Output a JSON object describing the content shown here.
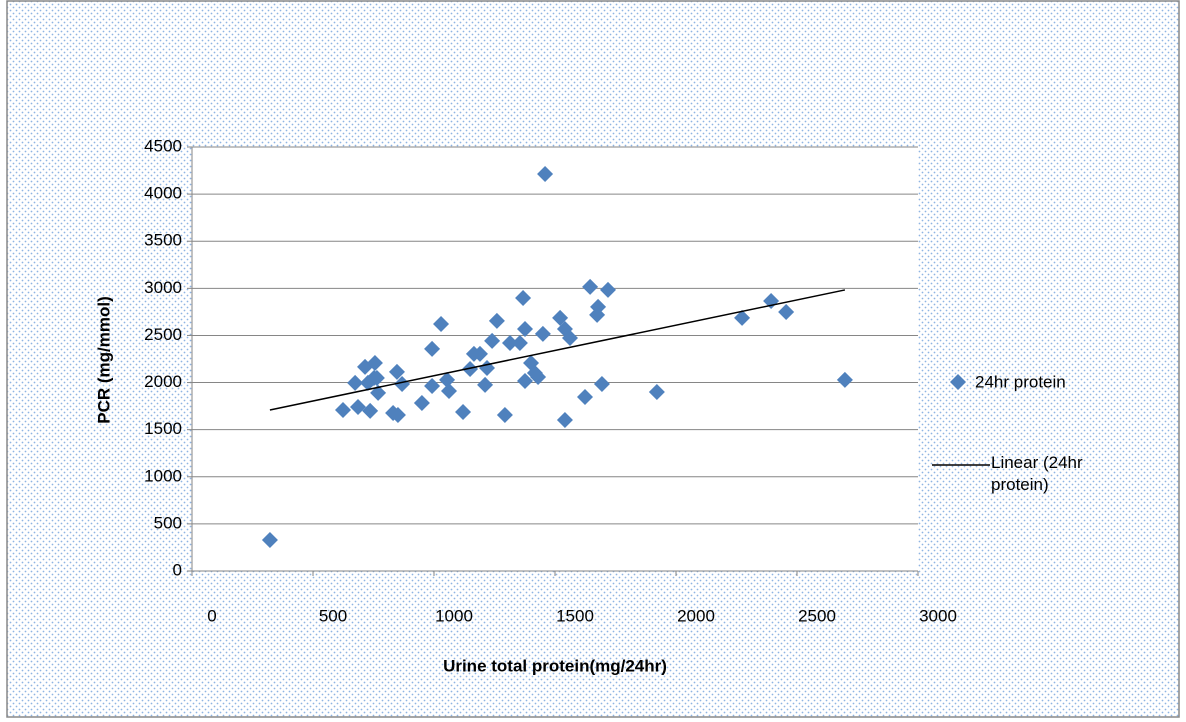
{
  "chart_data": {
    "type": "scatter",
    "x_label": "Urine total protein(mg/24hr)",
    "y_label": "PCR (mg/mmol)",
    "xlim": [
      0,
      3000
    ],
    "xticks": [
      0,
      500,
      1000,
      1500,
      2000,
      2500,
      3000
    ],
    "ylim": [
      0,
      4500
    ],
    "yticks": [
      0,
      500,
      1000,
      1500,
      2000,
      2500,
      3000,
      3500,
      4000,
      4500
    ],
    "grid": true,
    "series": [
      {
        "name": "24hr protein",
        "color": "#4f81bd",
        "x": [
          322,
          624,
          674,
          686,
          715,
          727,
          736,
          756,
          752,
          769,
          764,
          831,
          847,
          851,
          868,
          950,
          992,
          992,
          1029,
          1054,
          1062,
          1120,
          1149,
          1165,
          1190,
          1211,
          1219,
          1240,
          1260,
          1293,
          1314,
          1355,
          1368,
          1376,
          1376,
          1401,
          1417,
          1430,
          1450,
          1459,
          1521,
          1541,
          1541,
          1562,
          1624,
          1645,
          1674,
          1678,
          1694,
          1719,
          1921,
          2273,
          2393,
          2455,
          2698
        ],
        "values": [
          329,
          1709,
          1996,
          1741,
          2166,
          1996,
          1699,
          2208,
          2049,
          1890,
          2049,
          1677,
          2113,
          1656,
          1985,
          1783,
          2357,
          1964,
          2622,
          2028,
          1911,
          1688,
          2144,
          2304,
          2304,
          1975,
          2155,
          2442,
          2654,
          1656,
          2420,
          2420,
          2898,
          2569,
          2017,
          2208,
          2102,
          2059,
          2516,
          4214,
          2686,
          2569,
          1603,
          2473,
          1847,
          3015,
          2718,
          2803,
          1985,
          2983,
          1900,
          2686,
          2866,
          2749,
          2028
        ]
      },
      {
        "name": "Linear (24hr protein)",
        "type": "line",
        "color": "#000000",
        "x": [
          322,
          2698
        ],
        "values": [
          1709,
          2983
        ]
      }
    ]
  }
}
